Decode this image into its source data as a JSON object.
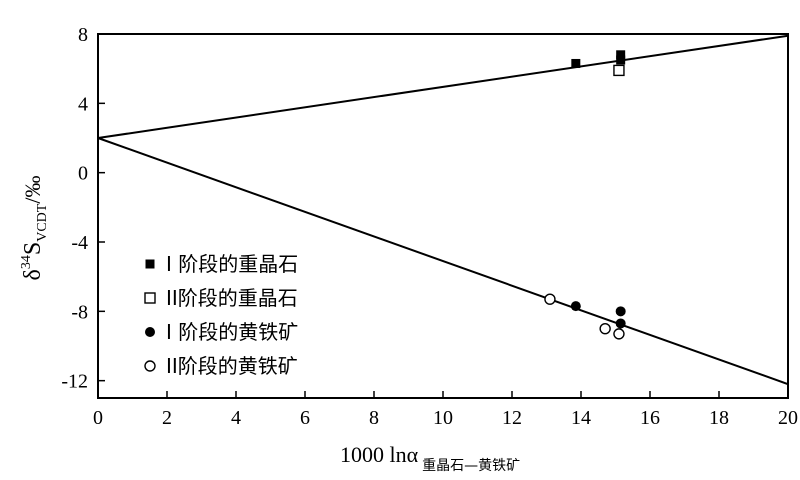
{
  "chart_data": {
    "type": "scatter",
    "xlabel": {
      "main": "1000 lnα",
      "sub": "重晶石—黄铁矿"
    },
    "ylabel": {
      "main": "δ",
      "sup": "34",
      "s": "S",
      "sub": "VCDT",
      "unit": "/‰"
    },
    "xlim": [
      0,
      20
    ],
    "ylim": [
      -13,
      8
    ],
    "xticks": [
      0,
      2,
      4,
      6,
      8,
      10,
      12,
      14,
      16,
      18,
      20
    ],
    "yticks": [
      8,
      4,
      0,
      -4,
      -8,
      -12
    ],
    "grid": false,
    "legend_position": "bottom-left",
    "lines": [
      {
        "x": [
          0,
          20
        ],
        "y": [
          2,
          7.9
        ]
      },
      {
        "x": [
          0,
          20
        ],
        "y": [
          2,
          -12.2
        ]
      }
    ],
    "series": [
      {
        "name": "I 阶段的重晶石",
        "marker": "filled-square",
        "points": [
          [
            13.85,
            6.3
          ],
          [
            15.15,
            6.8
          ],
          [
            15.15,
            6.5
          ]
        ]
      },
      {
        "name": "II阶段的重晶石",
        "marker": "open-square",
        "points": [
          [
            15.1,
            5.9
          ]
        ]
      },
      {
        "name": "I 阶段的黄铁矿",
        "marker": "filled-circle",
        "points": [
          [
            13.85,
            -7.7
          ],
          [
            15.15,
            -8.0
          ],
          [
            15.15,
            -8.7
          ]
        ]
      },
      {
        "name": "II阶段的黄铁矿",
        "marker": "open-circle",
        "points": [
          [
            13.1,
            -7.3
          ],
          [
            14.7,
            -9.0
          ],
          [
            15.1,
            -9.3
          ]
        ]
      }
    ]
  }
}
